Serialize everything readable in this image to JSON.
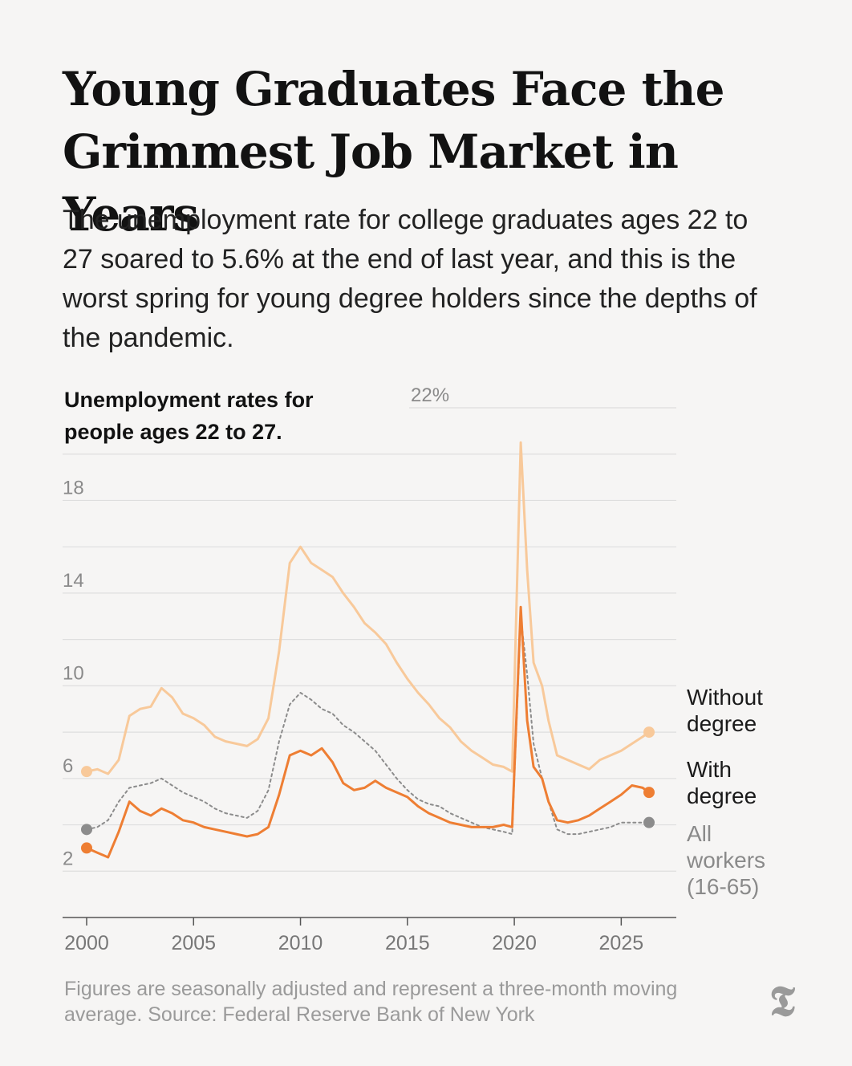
{
  "headline": "Young Graduates Face the Grimmest Job Market in Years",
  "subheadline": "The unemployment rate for college graduates ages 22 to 27 soared to 5.6% at the end of last year, and this is the worst spring for young degree holders since the depths of the pandemic.",
  "footnote": "Figures are seasonally adjusted and represent a three-month moving average. Source: Federal Reserve Bank of New York",
  "logo_icon": "nyt-t-logo-icon",
  "colors": {
    "without_degree": "#f8c99a",
    "with_degree": "#ee7e33",
    "all_workers": "#8c8c8c",
    "grid": "#dedede",
    "axis": "#555555"
  },
  "chart_data": {
    "type": "line",
    "title": "Unemployment rates for people ages 22 to 27.",
    "xlabel": "",
    "ylabel": "",
    "xlim": [
      1999.5,
      2026.6
    ],
    "ylim": [
      0,
      22
    ],
    "y_ticks": [
      {
        "value": 2,
        "label": "2"
      },
      {
        "value": 6,
        "label": "6"
      },
      {
        "value": 10,
        "label": "10"
      },
      {
        "value": 14,
        "label": "14"
      },
      {
        "value": 18,
        "label": "18"
      },
      {
        "value": 22,
        "label": "22%"
      }
    ],
    "y_gridlines": [
      2,
      4,
      6,
      8,
      10,
      12,
      14,
      16,
      18,
      20,
      22
    ],
    "x_ticks": [
      2000,
      2005,
      2010,
      2015,
      2020,
      2025
    ],
    "grid": true,
    "legend": "direct labels at right end of lines",
    "series": [
      {
        "name": "Without degree",
        "style": "solid-light",
        "end_marker": true,
        "points": [
          [
            2000,
            6.3
          ],
          [
            2000.5,
            6.4
          ],
          [
            2001,
            6.2
          ],
          [
            2001.5,
            6.8
          ],
          [
            2002,
            8.7
          ],
          [
            2002.5,
            9.0
          ],
          [
            2003,
            9.1
          ],
          [
            2003.5,
            9.9
          ],
          [
            2004,
            9.5
          ],
          [
            2004.5,
            8.8
          ],
          [
            2005,
            8.6
          ],
          [
            2005.5,
            8.3
          ],
          [
            2006,
            7.8
          ],
          [
            2006.5,
            7.6
          ],
          [
            2007,
            7.5
          ],
          [
            2007.5,
            7.4
          ],
          [
            2008,
            7.7
          ],
          [
            2008.5,
            8.6
          ],
          [
            2009,
            11.5
          ],
          [
            2009.5,
            15.3
          ],
          [
            2010,
            16.0
          ],
          [
            2010.5,
            15.3
          ],
          [
            2011,
            15.0
          ],
          [
            2011.5,
            14.7
          ],
          [
            2012,
            14.0
          ],
          [
            2012.5,
            13.4
          ],
          [
            2013,
            12.7
          ],
          [
            2013.5,
            12.3
          ],
          [
            2014,
            11.8
          ],
          [
            2014.5,
            11.0
          ],
          [
            2015,
            10.3
          ],
          [
            2015.5,
            9.7
          ],
          [
            2016,
            9.2
          ],
          [
            2016.5,
            8.6
          ],
          [
            2017,
            8.2
          ],
          [
            2017.5,
            7.6
          ],
          [
            2018,
            7.2
          ],
          [
            2018.5,
            6.9
          ],
          [
            2019,
            6.6
          ],
          [
            2019.5,
            6.5
          ],
          [
            2019.9,
            6.3
          ],
          [
            2020.3,
            20.5
          ],
          [
            2020.6,
            15.0
          ],
          [
            2020.9,
            11.0
          ],
          [
            2021.3,
            10.0
          ],
          [
            2021.6,
            8.5
          ],
          [
            2022,
            7.0
          ],
          [
            2022.5,
            6.8
          ],
          [
            2023,
            6.6
          ],
          [
            2023.5,
            6.4
          ],
          [
            2024,
            6.8
          ],
          [
            2024.5,
            7.0
          ],
          [
            2025,
            7.2
          ],
          [
            2025.5,
            7.5
          ],
          [
            2026,
            7.8
          ],
          [
            2026.3,
            8.0
          ]
        ]
      },
      {
        "name": "With degree",
        "style": "solid-dark",
        "end_marker": true,
        "points": [
          [
            2000,
            3.0
          ],
          [
            2000.5,
            2.8
          ],
          [
            2001,
            2.6
          ],
          [
            2001.5,
            3.7
          ],
          [
            2002,
            5.0
          ],
          [
            2002.5,
            4.6
          ],
          [
            2003,
            4.4
          ],
          [
            2003.5,
            4.7
          ],
          [
            2004,
            4.5
          ],
          [
            2004.5,
            4.2
          ],
          [
            2005,
            4.1
          ],
          [
            2005.5,
            3.9
          ],
          [
            2006,
            3.8
          ],
          [
            2006.5,
            3.7
          ],
          [
            2007,
            3.6
          ],
          [
            2007.5,
            3.5
          ],
          [
            2008,
            3.6
          ],
          [
            2008.5,
            3.9
          ],
          [
            2009,
            5.3
          ],
          [
            2009.5,
            7.0
          ],
          [
            2010,
            7.2
          ],
          [
            2010.5,
            7.0
          ],
          [
            2011,
            7.3
          ],
          [
            2011.5,
            6.7
          ],
          [
            2012,
            5.8
          ],
          [
            2012.5,
            5.5
          ],
          [
            2013,
            5.6
          ],
          [
            2013.5,
            5.9
          ],
          [
            2014,
            5.6
          ],
          [
            2014.5,
            5.4
          ],
          [
            2015,
            5.2
          ],
          [
            2015.5,
            4.8
          ],
          [
            2016,
            4.5
          ],
          [
            2016.5,
            4.3
          ],
          [
            2017,
            4.1
          ],
          [
            2017.5,
            4.0
          ],
          [
            2018,
            3.9
          ],
          [
            2018.5,
            3.9
          ],
          [
            2019,
            3.9
          ],
          [
            2019.5,
            4.0
          ],
          [
            2019.9,
            3.9
          ],
          [
            2020.3,
            13.4
          ],
          [
            2020.6,
            8.5
          ],
          [
            2020.9,
            6.5
          ],
          [
            2021.3,
            6.0
          ],
          [
            2021.6,
            5.0
          ],
          [
            2022,
            4.2
          ],
          [
            2022.5,
            4.1
          ],
          [
            2023,
            4.2
          ],
          [
            2023.5,
            4.4
          ],
          [
            2024,
            4.7
          ],
          [
            2024.5,
            5.0
          ],
          [
            2025,
            5.3
          ],
          [
            2025.5,
            5.7
          ],
          [
            2026,
            5.6
          ],
          [
            2026.3,
            5.4
          ]
        ]
      },
      {
        "name": "All workers (16-65)",
        "style": "dotted",
        "end_marker": true,
        "points": [
          [
            2000,
            3.8
          ],
          [
            2000.5,
            3.9
          ],
          [
            2001,
            4.2
          ],
          [
            2001.5,
            5.0
          ],
          [
            2002,
            5.6
          ],
          [
            2002.5,
            5.7
          ],
          [
            2003,
            5.8
          ],
          [
            2003.5,
            6.0
          ],
          [
            2004,
            5.7
          ],
          [
            2004.5,
            5.4
          ],
          [
            2005,
            5.2
          ],
          [
            2005.5,
            5.0
          ],
          [
            2006,
            4.7
          ],
          [
            2006.5,
            4.5
          ],
          [
            2007,
            4.4
          ],
          [
            2007.5,
            4.3
          ],
          [
            2008,
            4.6
          ],
          [
            2008.5,
            5.5
          ],
          [
            2009,
            7.6
          ],
          [
            2009.5,
            9.2
          ],
          [
            2010,
            9.7
          ],
          [
            2010.5,
            9.4
          ],
          [
            2011,
            9.0
          ],
          [
            2011.5,
            8.8
          ],
          [
            2012,
            8.3
          ],
          [
            2012.5,
            8.0
          ],
          [
            2013,
            7.6
          ],
          [
            2013.5,
            7.2
          ],
          [
            2014,
            6.6
          ],
          [
            2014.5,
            6.0
          ],
          [
            2015,
            5.5
          ],
          [
            2015.5,
            5.1
          ],
          [
            2016,
            4.9
          ],
          [
            2016.5,
            4.8
          ],
          [
            2017,
            4.5
          ],
          [
            2017.5,
            4.3
          ],
          [
            2018,
            4.1
          ],
          [
            2018.5,
            3.9
          ],
          [
            2019,
            3.8
          ],
          [
            2019.5,
            3.7
          ],
          [
            2019.9,
            3.6
          ],
          [
            2020.3,
            13.0
          ],
          [
            2020.6,
            10.5
          ],
          [
            2020.9,
            7.5
          ],
          [
            2021.3,
            6.0
          ],
          [
            2021.6,
            5.0
          ],
          [
            2022,
            3.8
          ],
          [
            2022.5,
            3.6
          ],
          [
            2023,
            3.6
          ],
          [
            2023.5,
            3.7
          ],
          [
            2024,
            3.8
          ],
          [
            2024.5,
            3.9
          ],
          [
            2025,
            4.1
          ],
          [
            2025.5,
            4.1
          ],
          [
            2026,
            4.1
          ],
          [
            2026.3,
            4.1
          ]
        ]
      }
    ],
    "series_labels": [
      {
        "series": "Without degree",
        "lines": [
          "Without",
          "degree"
        ]
      },
      {
        "series": "With degree",
        "lines": [
          "With",
          "degree"
        ]
      },
      {
        "series": "All workers (16-65)",
        "lines": [
          "All",
          "workers",
          "(16-65)"
        ]
      }
    ]
  }
}
